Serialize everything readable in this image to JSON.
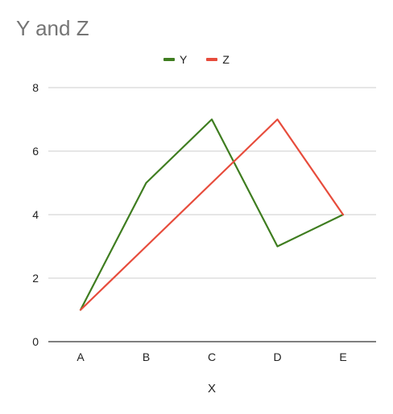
{
  "chart_data": {
    "type": "line",
    "title": "Y and Z",
    "xlabel": "X",
    "ylabel": "",
    "categories": [
      "A",
      "B",
      "C",
      "D",
      "E"
    ],
    "ylim": [
      0,
      8
    ],
    "yticks": [
      0,
      2,
      4,
      6,
      8
    ],
    "grid": true,
    "legend_position": "top-center",
    "series": [
      {
        "name": "Y",
        "values": [
          1,
          5,
          7,
          3,
          4
        ],
        "color": "#3f7d20"
      },
      {
        "name": "Z",
        "values": [
          1,
          3,
          5,
          7,
          4
        ],
        "color": "#e74c3c"
      }
    ]
  }
}
